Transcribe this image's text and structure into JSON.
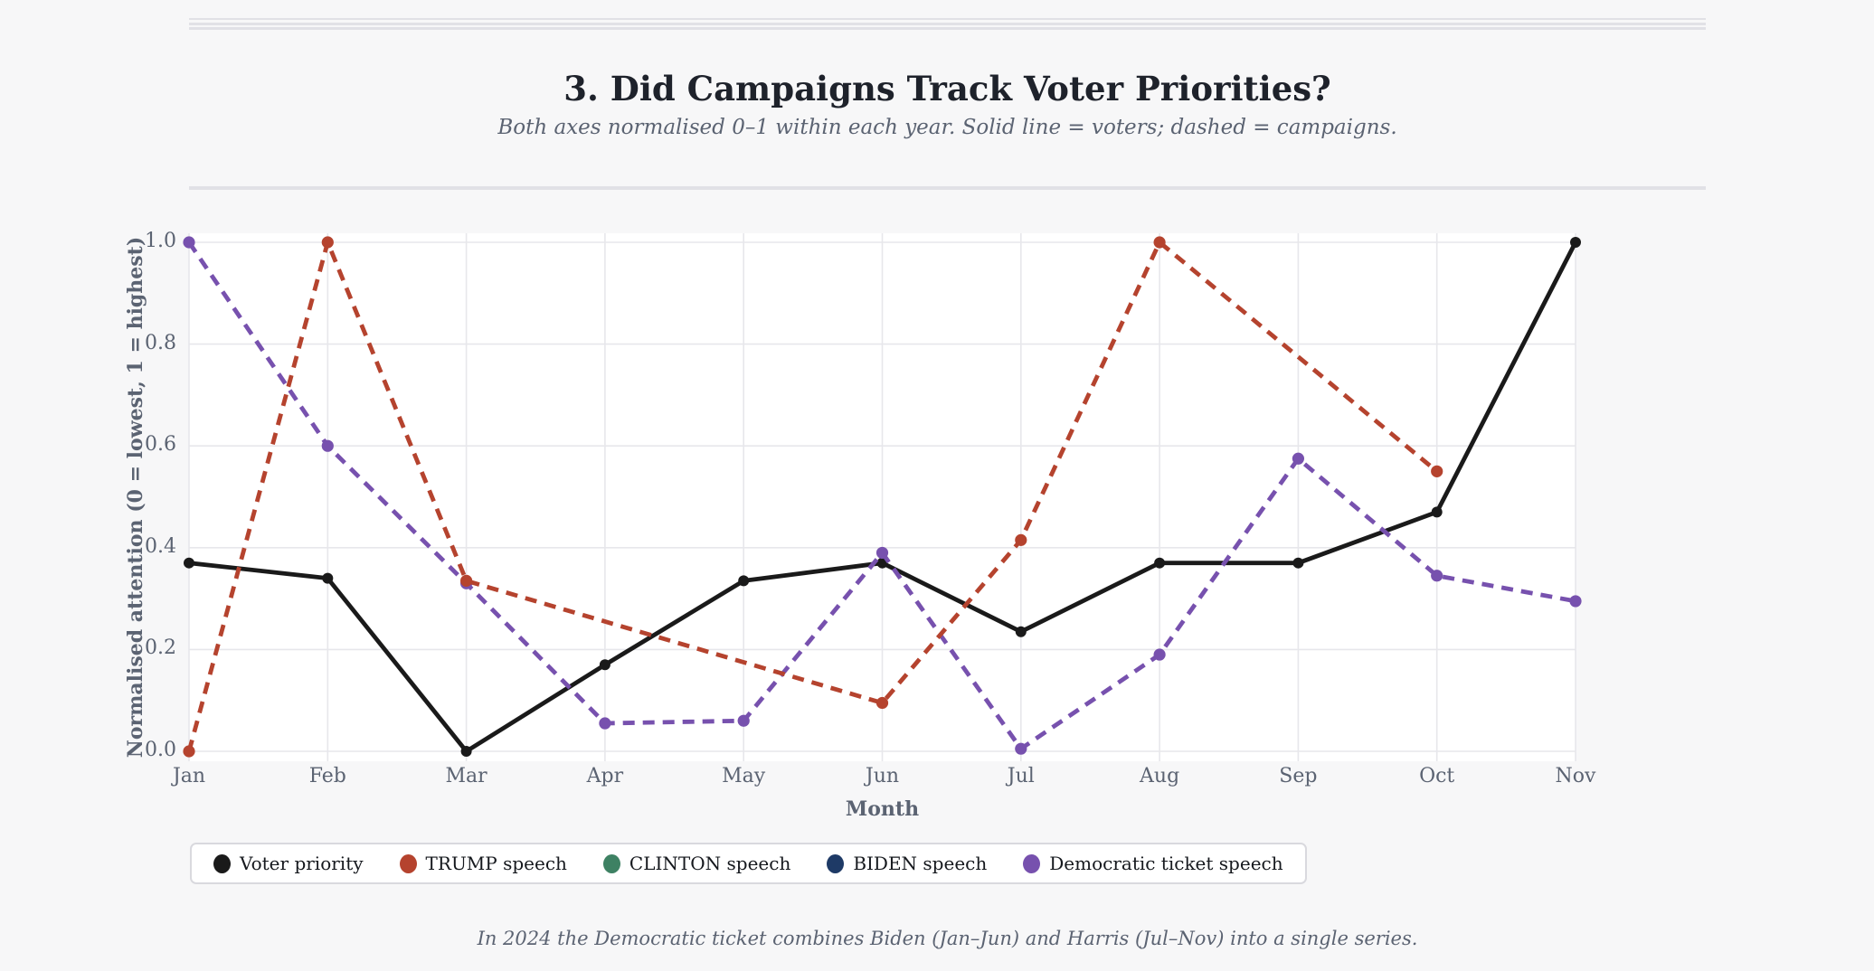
{
  "page": {
    "title": "3. Did Campaigns Track Voter Priorities?",
    "subtitle": "Both axes normalised 0–1 within each year. Solid line = voters; dashed = campaigns.",
    "footnote": "In 2024 the Democratic ticket combines Biden (Jan–Jun) and Harris (Jul–Nov) into a single series."
  },
  "colors": {
    "background": "#f7f7f8",
    "plot_bg": "#ffffff",
    "grid": "#e7e7eb",
    "divider": "#e1e1e6",
    "legend_border": "#d9d9de",
    "title_text": "#1e222b",
    "axis_text": "#5b6372",
    "voter": "#1a1a1a",
    "trump": "#b5432e",
    "clinton": "#3e8163",
    "biden": "#1e3a66",
    "democratic": "#7751ae"
  },
  "chart_data": {
    "type": "line",
    "title": "3. Did Campaigns Track Voter Priorities?",
    "xlabel": "Month",
    "ylabel": "Normalised attention (0 = lowest, 1 = highest)",
    "categories": [
      "Jan",
      "Feb",
      "Mar",
      "Apr",
      "May",
      "Jun",
      "Jul",
      "Aug",
      "Sep",
      "Oct",
      "Nov"
    ],
    "ylim": [
      0,
      1
    ],
    "yticks": [
      0.0,
      0.2,
      0.4,
      0.6,
      0.8,
      1.0
    ],
    "grid": true,
    "legend_position": "bottom-left",
    "series": [
      {
        "name": "Voter priority",
        "color_key": "voter",
        "style": "solid",
        "values": [
          0.37,
          0.34,
          0.0,
          0.17,
          0.335,
          0.37,
          0.235,
          0.37,
          0.37,
          0.47,
          1.0
        ]
      },
      {
        "name": "CLINTON speech",
        "color_key": "clinton",
        "style": "dashed",
        "values": [
          null,
          null,
          null,
          null,
          null,
          null,
          null,
          null,
          null,
          null,
          null
        ]
      },
      {
        "name": "BIDEN speech",
        "color_key": "biden",
        "style": "dashed",
        "values": [
          null,
          null,
          null,
          null,
          null,
          null,
          null,
          null,
          null,
          null,
          null
        ]
      },
      {
        "name": "Democratic ticket speech",
        "color_key": "democratic",
        "style": "dashed",
        "values": [
          1.0,
          0.6,
          0.33,
          0.055,
          0.06,
          0.39,
          0.005,
          0.19,
          0.575,
          0.345,
          0.295
        ]
      },
      {
        "name": "TRUMP speech",
        "color_key": "trump",
        "style": "dashed",
        "values": [
          0.0,
          1.0,
          0.335,
          null,
          null,
          0.095,
          0.415,
          1.0,
          null,
          0.55,
          null
        ]
      }
    ],
    "legend": [
      "Voter priority",
      "TRUMP speech",
      "CLINTON speech",
      "BIDEN speech",
      "Democratic ticket speech"
    ]
  }
}
